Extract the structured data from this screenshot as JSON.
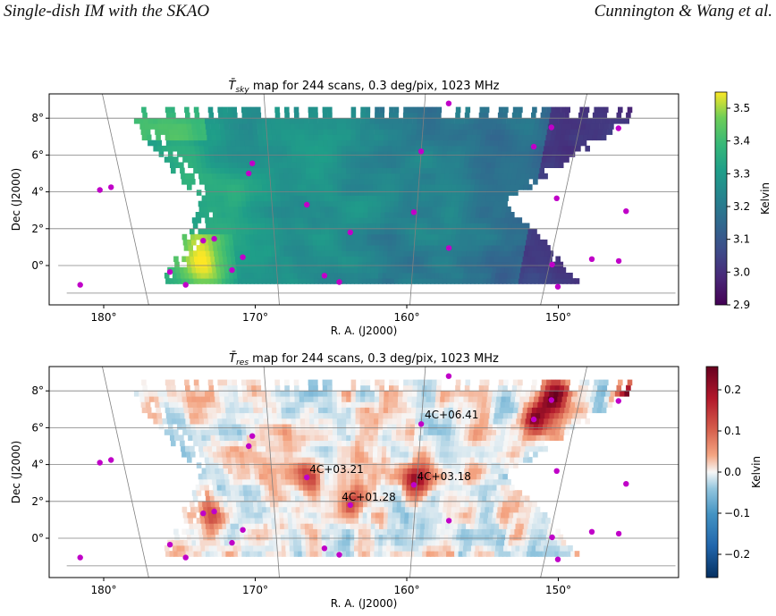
{
  "header": {
    "left": "Single-dish IM with the SKAO",
    "right": "Cunnington & Wang et al."
  },
  "chart_data": [
    {
      "type": "heatmap",
      "title_sym": "T̄",
      "title_sub": "sky",
      "title_rest": " map for 244 scans, 0.3 deg/pix, 1023 MHz",
      "xlabel": "R. A. (J2000)",
      "ylabel": "Dec (J2000)",
      "x_ticks": [
        "180°",
        "170°",
        "160°",
        "150°"
      ],
      "y_ticks": [
        "8°",
        "6°",
        "4°",
        "2°",
        "0°"
      ],
      "colorbar_label": "Kelvin",
      "colorbar_ticks": [
        "3.5",
        "3.4",
        "3.3",
        "3.2",
        "3.1",
        "3.0",
        "2.9"
      ],
      "colormap": "viridis",
      "vmin": 2.9,
      "vmax": 3.55,
      "sources": [
        [
          181.6,
          4.1
        ],
        [
          180.8,
          4.25
        ],
        [
          177.9,
          -0.35
        ],
        [
          176.9,
          -1.05
        ],
        [
          175.1,
          1.35
        ],
        [
          174.3,
          1.45
        ],
        [
          173.3,
          -0.25
        ],
        [
          172.4,
          0.45
        ],
        [
          171.1,
          5.55
        ],
        [
          171.4,
          5.0
        ],
        [
          167.6,
          3.3
        ],
        [
          166.5,
          -0.55
        ],
        [
          165.4,
          -0.9
        ],
        [
          164.6,
          1.8
        ],
        [
          160.2,
          2.9
        ],
        [
          160.0,
          6.2
        ],
        [
          158.5,
          8.8
        ],
        [
          157.5,
          0.95
        ],
        [
          152.7,
          6.45
        ],
        [
          151.8,
          7.5
        ],
        [
          150.5,
          3.65
        ],
        [
          149.8,
          0.05
        ],
        [
          149.0,
          -1.15
        ],
        [
          147.5,
          7.45
        ],
        [
          147.0,
          0.35
        ],
        [
          145.6,
          9.75
        ],
        [
          145.5,
          2.95
        ],
        [
          145.0,
          0.25
        ],
        [
          143.5,
          8.6
        ],
        [
          184.8,
          -1.05
        ]
      ]
    },
    {
      "type": "heatmap",
      "title_sym": "T̄",
      "title_sub": "res",
      "title_rest": " map for 244 scans, 0.3 deg/pix, 1023 MHz",
      "xlabel": "R. A. (J2000)",
      "ylabel": "Dec (J2000)",
      "x_ticks": [
        "180°",
        "170°",
        "160°",
        "150°"
      ],
      "y_ticks": [
        "8°",
        "6°",
        "4°",
        "2°",
        "0°"
      ],
      "colorbar_label": "Kelvin",
      "colorbar_ticks": [
        "0.2",
        "0.1",
        "0.0",
        "−0.1",
        "−0.2"
      ],
      "colormap": "RdBu_r",
      "vmin": -0.25,
      "vmax": 0.25,
      "annotations": [
        {
          "text": "4C+06.41",
          "ra": 159.8,
          "dec": 6.5
        },
        {
          "text": "4C+03.21",
          "ra": 167.4,
          "dec": 3.55
        },
        {
          "text": "4C+03.18",
          "ra": 160.0,
          "dec": 3.15
        },
        {
          "text": "4C+01.28",
          "ra": 165.2,
          "dec": 2.05
        }
      ],
      "sources": [
        [
          181.6,
          4.1
        ],
        [
          180.8,
          4.25
        ],
        [
          177.9,
          -0.35
        ],
        [
          176.9,
          -1.05
        ],
        [
          175.1,
          1.35
        ],
        [
          174.3,
          1.45
        ],
        [
          173.3,
          -0.25
        ],
        [
          172.4,
          0.45
        ],
        [
          171.1,
          5.55
        ],
        [
          171.4,
          5.0
        ],
        [
          167.6,
          3.3
        ],
        [
          166.5,
          -0.55
        ],
        [
          165.4,
          -0.9
        ],
        [
          164.6,
          1.8
        ],
        [
          160.2,
          2.9
        ],
        [
          160.0,
          6.2
        ],
        [
          158.5,
          8.8
        ],
        [
          157.5,
          0.95
        ],
        [
          152.7,
          6.45
        ],
        [
          151.8,
          7.5
        ],
        [
          150.5,
          3.65
        ],
        [
          149.8,
          0.05
        ],
        [
          149.0,
          -1.15
        ],
        [
          147.5,
          7.45
        ],
        [
          147.0,
          0.35
        ],
        [
          145.6,
          9.75
        ],
        [
          145.5,
          2.95
        ],
        [
          145.0,
          0.25
        ],
        [
          143.5,
          8.6
        ],
        [
          184.8,
          -1.05
        ]
      ]
    }
  ]
}
